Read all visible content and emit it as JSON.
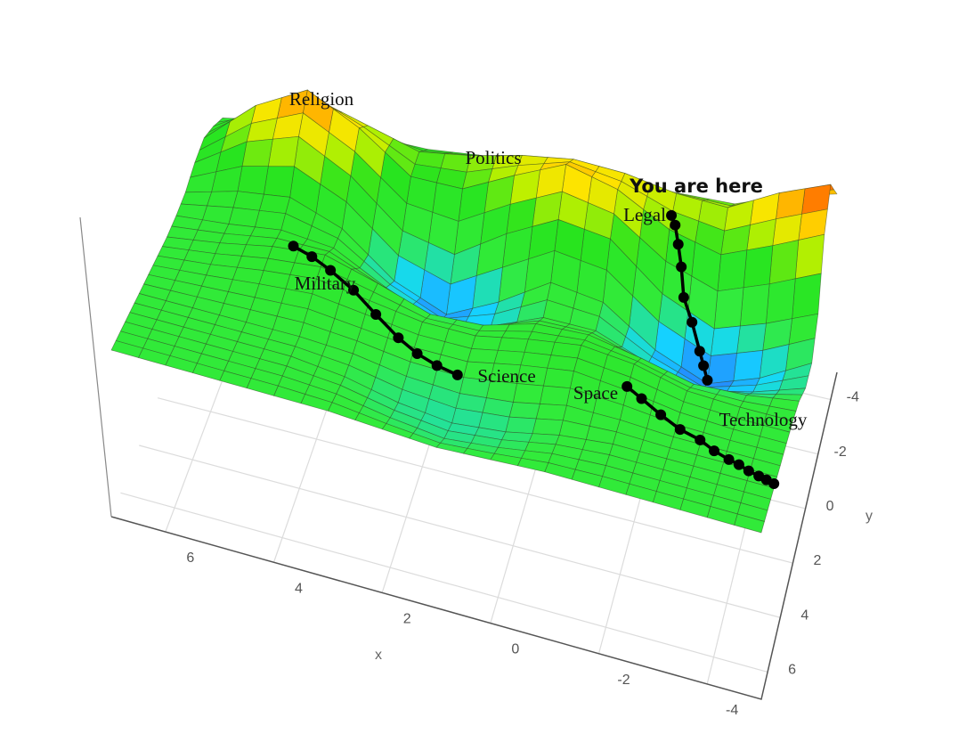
{
  "chart_data": {
    "type": "surface3d",
    "x_title": "x",
    "y_title": "y",
    "headline": "You are here",
    "annotations": [
      "Religion",
      "Politics",
      "Legal",
      "Military",
      "Science",
      "Space",
      "Technology"
    ],
    "xlim": [
      -5,
      7
    ],
    "ylim": [
      -5,
      7
    ],
    "xticks": [
      6,
      4,
      2,
      0,
      -2,
      -4
    ],
    "yticks": [
      -4,
      -2,
      0,
      2,
      4,
      6
    ],
    "grid": true,
    "x": [
      -5,
      -4,
      -3,
      -2,
      -1,
      0,
      1,
      2,
      3,
      4,
      5,
      6,
      7
    ],
    "y": [
      -5,
      -4,
      -3,
      -2,
      -1,
      0,
      1,
      2,
      3,
      4,
      5,
      6,
      7
    ],
    "z": [
      [
        9.1,
        8.4,
        7.4,
        7.3,
        7.2,
        7.1,
        7.0,
        6.9,
        6.6,
        6.6,
        6.7,
        6.3,
        5.8
      ],
      [
        10.5,
        9.5,
        8.2,
        8.3,
        8.7,
        8.8,
        8.4,
        7.8,
        7.4,
        8.1,
        8.8,
        7.8,
        6.3
      ],
      [
        9.0,
        7.9,
        6.9,
        7.5,
        8.8,
        9.4,
        8.3,
        7.1,
        7.1,
        8.8,
        10.0,
        8.7,
        6.6
      ],
      [
        6.3,
        5.3,
        4.5,
        5.5,
        7.4,
        7.7,
        6.5,
        5.0,
        5.5,
        7.4,
        8.6,
        7.8,
        6.3
      ],
      [
        5.1,
        3.9,
        3.1,
        4.0,
        5.5,
        5.8,
        4.4,
        3.3,
        4.2,
        5.9,
        6.7,
        6.4,
        5.8
      ],
      [
        5.0,
        4.3,
        3.8,
        4.4,
        5.2,
        5.2,
        4.3,
        3.9,
        4.8,
        5.9,
        6.1,
        5.8,
        5.6
      ],
      [
        5.4,
        5.1,
        5.0,
        5.5,
        5.9,
        5.8,
        5.2,
        5.1,
        5.8,
        6.4,
        6.2,
        5.8,
        5.5
      ],
      [
        5.5,
        5.5,
        5.6,
        6.1,
        6.3,
        6.0,
        5.6,
        5.6,
        5.9,
        6.2,
        6.0,
        5.7,
        5.5
      ],
      [
        5.5,
        5.5,
        5.6,
        5.9,
        6.1,
        5.8,
        5.4,
        5.4,
        5.6,
        5.8,
        5.7,
        5.6,
        5.5
      ],
      [
        5.5,
        5.5,
        5.5,
        5.6,
        5.6,
        5.2,
        5.0,
        5.1,
        5.4,
        5.5,
        5.5,
        5.5,
        5.5
      ],
      [
        5.5,
        5.5,
        5.5,
        5.5,
        5.3,
        4.9,
        4.7,
        4.9,
        5.3,
        5.5,
        5.5,
        5.5,
        5.5
      ],
      [
        5.5,
        5.5,
        5.5,
        5.5,
        5.4,
        5.1,
        4.9,
        5.1,
        5.4,
        5.5,
        5.5,
        5.5,
        5.5
      ],
      [
        5.5,
        5.5,
        5.5,
        5.5,
        5.5,
        5.4,
        5.3,
        5.4,
        5.5,
        5.5,
        5.5,
        5.5,
        5.5
      ]
    ],
    "trails": [
      {
        "color": "#000000",
        "x": [
          4.6,
          4.2,
          3.8,
          3.3,
          2.8,
          2.3,
          1.9,
          1.5,
          1.1
        ],
        "y": [
          1.0,
          1.3,
          1.6,
          2.0,
          2.5,
          3.0,
          3.3,
          3.5,
          3.6
        ]
      },
      {
        "color": "#000000",
        "x": [
          -2.0,
          -2.1,
          -2.2,
          -2.3,
          -2.4,
          -2.6,
          -2.8,
          -2.9,
          -3.0
        ],
        "y": [
          -3.3,
          -3.1,
          -2.8,
          -2.5,
          -2.1,
          -1.8,
          -1.4,
          -1.2,
          -1.0
        ]
      },
      {
        "color": "#000000",
        "x": [
          -2.0,
          -2.3,
          -2.7,
          -3.1,
          -3.5,
          -3.8,
          -4.1,
          -4.3,
          -4.5,
          -4.7,
          -4.85,
          -5.0
        ],
        "y": [
          3.0,
          3.2,
          3.5,
          3.8,
          4.0,
          4.3,
          4.5,
          4.6,
          4.75,
          4.85,
          4.92,
          5.0
        ]
      }
    ]
  }
}
